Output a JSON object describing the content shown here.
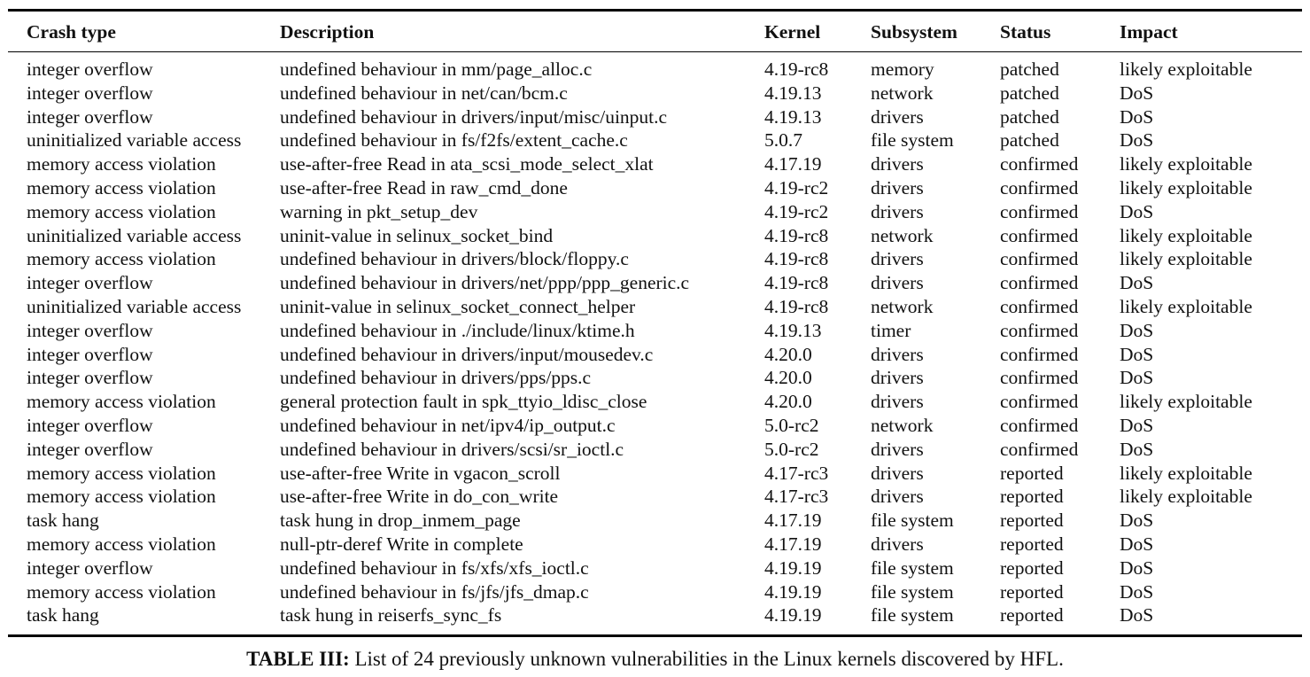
{
  "table": {
    "columns": [
      "Crash type",
      "Description",
      "Kernel",
      "Subsystem",
      "Status",
      "Impact"
    ],
    "rows": [
      [
        "integer overflow",
        "undefined behaviour in mm/page_alloc.c",
        "4.19-rc8",
        "memory",
        "patched",
        "likely exploitable"
      ],
      [
        "integer overflow",
        "undefined behaviour in net/can/bcm.c",
        "4.19.13",
        "network",
        "patched",
        "DoS"
      ],
      [
        "integer overflow",
        "undefined behaviour in drivers/input/misc/uinput.c",
        "4.19.13",
        "drivers",
        "patched",
        "DoS"
      ],
      [
        "uninitialized variable access",
        "undefined behaviour in fs/f2fs/extent_cache.c",
        "5.0.7",
        "file system",
        "patched",
        "DoS"
      ],
      [
        "memory access violation",
        "use-after-free Read in ata_scsi_mode_select_xlat",
        "4.17.19",
        "drivers",
        "confirmed",
        "likely exploitable"
      ],
      [
        "memory access violation",
        "use-after-free Read in raw_cmd_done",
        "4.19-rc2",
        "drivers",
        "confirmed",
        "likely exploitable"
      ],
      [
        "memory access violation",
        "warning in pkt_setup_dev",
        "4.19-rc2",
        "drivers",
        "confirmed",
        "DoS"
      ],
      [
        "uninitialized variable access",
        "uninit-value in selinux_socket_bind",
        "4.19-rc8",
        "network",
        "confirmed",
        "likely exploitable"
      ],
      [
        "memory access violation",
        "undefined behaviour in drivers/block/floppy.c",
        "4.19-rc8",
        "drivers",
        "confirmed",
        "likely exploitable"
      ],
      [
        "integer overflow",
        "undefined behaviour in drivers/net/ppp/ppp_generic.c",
        "4.19-rc8",
        "drivers",
        "confirmed",
        "DoS"
      ],
      [
        "uninitialized variable access",
        "uninit-value in selinux_socket_connect_helper",
        "4.19-rc8",
        "network",
        "confirmed",
        "likely exploitable"
      ],
      [
        "integer overflow",
        "undefined behaviour in ./include/linux/ktime.h",
        "4.19.13",
        "timer",
        "confirmed",
        "DoS"
      ],
      [
        "integer overflow",
        "undefined behaviour in drivers/input/mousedev.c",
        "4.20.0",
        "drivers",
        "confirmed",
        "DoS"
      ],
      [
        "integer overflow",
        "undefined behaviour in drivers/pps/pps.c",
        "4.20.0",
        "drivers",
        "confirmed",
        "DoS"
      ],
      [
        "memory access violation",
        "general protection fault in spk_ttyio_ldisc_close",
        "4.20.0",
        "drivers",
        "confirmed",
        "likely exploitable"
      ],
      [
        "integer overflow",
        "undefined behaviour in net/ipv4/ip_output.c",
        "5.0-rc2",
        "network",
        "confirmed",
        "DoS"
      ],
      [
        "integer overflow",
        "undefined behaviour in drivers/scsi/sr_ioctl.c",
        "5.0-rc2",
        "drivers",
        "confirmed",
        "DoS"
      ],
      [
        "memory access violation",
        "use-after-free Write in vgacon_scroll",
        "4.17-rc3",
        "drivers",
        "reported",
        "likely exploitable"
      ],
      [
        "memory access violation",
        "use-after-free Write in do_con_write",
        "4.17-rc3",
        "drivers",
        "reported",
        "likely exploitable"
      ],
      [
        "task hang",
        "task hung in drop_inmem_page",
        "4.17.19",
        "file system",
        "reported",
        "DoS"
      ],
      [
        "memory access violation",
        "null-ptr-deref Write in complete",
        "4.17.19",
        "drivers",
        "reported",
        "DoS"
      ],
      [
        "integer overflow",
        "undefined behaviour in fs/xfs/xfs_ioctl.c",
        "4.19.19",
        "file system",
        "reported",
        "DoS"
      ],
      [
        "memory access violation",
        "undefined behaviour in fs/jfs/jfs_dmap.c",
        "4.19.19",
        "file system",
        "reported",
        "DoS"
      ],
      [
        "task hang",
        "task hung in reiserfs_sync_fs",
        "4.19.19",
        "file system",
        "reported",
        "DoS"
      ]
    ]
  },
  "caption": {
    "label": "TABLE III:",
    "text": " List of 24 previously unknown vulnerabilities in the Linux kernels discovered by HFL."
  }
}
